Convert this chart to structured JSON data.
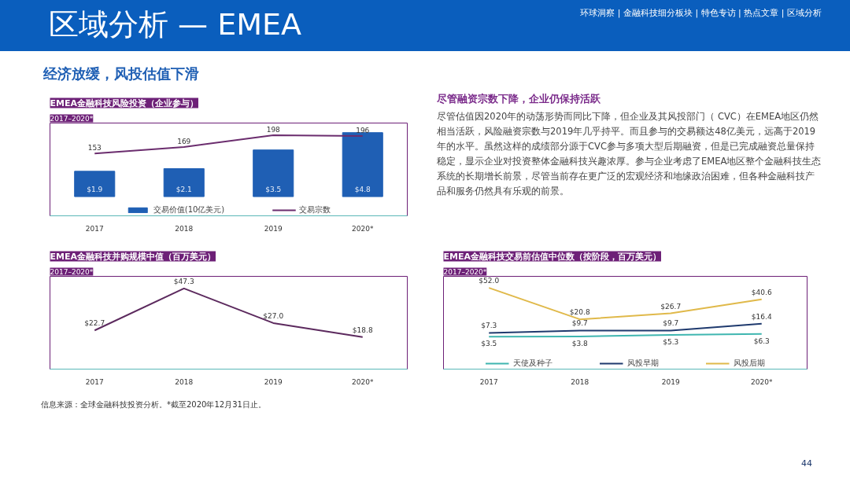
{
  "chart_data": [
    {
      "type": "other",
      "title": "区域分析 — EMEA",
      "annotations": [
        "环球洞察 | 金融科技细分板块 | 特色专访 | 热点文章 | 区域分析",
        "经济放缓，风投估值下滑"
      ]
    },
    {
      "type": "bar",
      "title": "EMEA金融科技风险投资（企业参与）",
      "subtitle": "2017–2020*",
      "categories": [
        "2017",
        "2018",
        "2019",
        "2020*"
      ],
      "legend": "bottom",
      "tick_labels": "x",
      "grid": false,
      "series": [
        {
          "name": "交易价值(10亿美元)",
          "type": "bar",
          "color": "#1f5fb4",
          "values": [
            1.9,
            2.1,
            3.5,
            4.8
          ],
          "value_labels": [
            "$1.9",
            "$2.1",
            "$3.5",
            "$4.8"
          ]
        },
        {
          "name": "交易宗数",
          "type": "line",
          "axis": "y2",
          "color": "#6b2d6e",
          "values": [
            153,
            169,
            198,
            196
          ],
          "value_labels": [
            "153",
            "169",
            "198",
            "196"
          ]
        }
      ]
    },
    {
      "type": "other",
      "title": "尽管融资宗数下降，企业仍保持活跃",
      "annotations": [
        "尽管估值因2020年的动荡形势而同比下降，但企业及其风投部门（ CVC）在EMEA地区仍然相当活跃，风险融资宗数与2019年几乎持平。而且参与的交易额达48亿美元，远高于2019年的水平。虽然这样的成绩部分源于CVC参与多项大型后期融资，但是已完成融资总量保持稳定，显示企业对投资整体金融科技兴趣浓厚。参与企业考虑了EMEA地区整个金融科技生态系统的长期增长前景，尽管当前存在更广泛的宏观经济和地缘政治困难，但各种金融科技产品和服务仍然具有乐观的前景。"
      ]
    },
    {
      "type": "line",
      "title": "EMEA金融科技并购规模中值（百万美元）",
      "subtitle": "2017–2020*",
      "categories": [
        "2017",
        "2018",
        "2019",
        "2020*"
      ],
      "legend": false,
      "tick_labels": "x",
      "grid": false,
      "series": [
        {
          "color": "#5c2a5e",
          "values": [
            22.7,
            47.3,
            27.0,
            18.8
          ],
          "value_labels": [
            "$22.7",
            "$47.3",
            "$27.0",
            "$18.8"
          ]
        }
      ]
    },
    {
      "type": "line",
      "title": "EMEA金融科技交易前估值中位数（按阶段，百万美元）",
      "subtitle": "2017–2020*",
      "categories": [
        "2017",
        "2018",
        "2019",
        "2020*"
      ],
      "legend": "bottom",
      "tick_labels": "x",
      "grid": false,
      "series": [
        {
          "name": "天使及种子",
          "color": "#3fb6b0",
          "values": [
            3.5,
            3.8,
            5.3,
            6.3
          ],
          "value_labels": [
            "$3.5",
            "$3.8",
            "$5.3",
            "$6.3"
          ]
        },
        {
          "name": "风投早期",
          "color": "#1f3a6e",
          "values": [
            7.3,
            9.7,
            9.7,
            16.4
          ],
          "value_labels": [
            "$7.3",
            "$9.7",
            "$9.7",
            "$16.4"
          ]
        },
        {
          "name": "风投后期",
          "color": "#e0b94a",
          "values": [
            52.0,
            20.8,
            26.7,
            40.6
          ],
          "value_labels": [
            "$52.0",
            "$20.8",
            "$26.7",
            "$40.6"
          ]
        }
      ]
    },
    {
      "type": "other",
      "annotations": [
        "信息来源：全球金融科技投资分析。*截至2020年12月31日止。",
        "44"
      ]
    }
  ]
}
